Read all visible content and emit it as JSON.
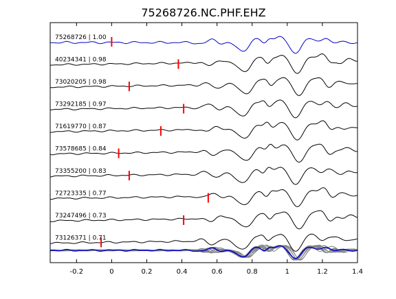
{
  "chart_data": {
    "type": "line",
    "title": "75268726.NC.PHF.EHZ",
    "xlabel": "",
    "ylabel": "",
    "xlim": [
      -0.35,
      1.4
    ],
    "xticks": [
      -0.2,
      0,
      0.2,
      0.4,
      0.6,
      0.8,
      1,
      1.2,
      1.4
    ],
    "xtick_labels": [
      "-0.2",
      "0",
      "0.2",
      "0.4",
      "0.6",
      "0.8",
      "1",
      "1.2",
      "1.4"
    ],
    "grid": false,
    "legend": "none",
    "colors": {
      "reference": "#0000cc",
      "trace": "#000000",
      "pick": "#ff0000",
      "stack": "#808080"
    },
    "series": [
      {
        "label": "75268726 | 1.00",
        "pick": 0.0,
        "reference": true
      },
      {
        "label": "40234341 | 0.98",
        "pick": 0.38
      },
      {
        "label": "73020205 | 0.98",
        "pick": 0.1
      },
      {
        "label": "73292185 | 0.97",
        "pick": 0.41
      },
      {
        "label": "71619770 | 0.87",
        "pick": 0.28
      },
      {
        "label": "73578685 | 0.84",
        "pick": 0.04
      },
      {
        "label": "73355200 | 0.83",
        "pick": 0.1
      },
      {
        "label": "72723335 | 0.77",
        "pick": 0.55
      },
      {
        "label": "73247496 | 0.73",
        "pick": 0.41
      },
      {
        "label": "73126371 | 0.71",
        "pick": -0.06
      }
    ],
    "overlay": {
      "stack_count": 10
    }
  }
}
